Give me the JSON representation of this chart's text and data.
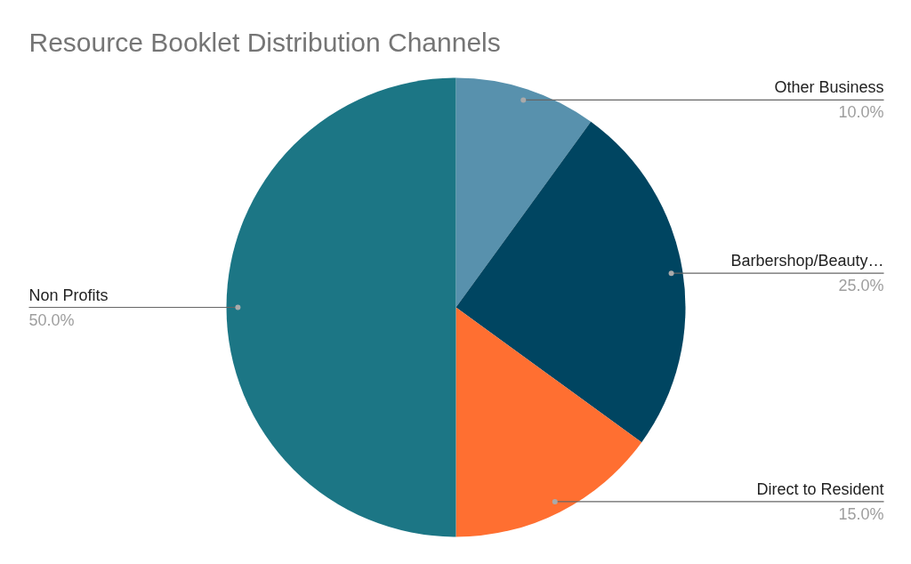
{
  "chart_data": {
    "type": "pie",
    "title": "Resource Booklet Distribution Channels",
    "categories": [
      "Other Business",
      "Barbershop/Beauty…",
      "Direct to Resident",
      "Non Profits"
    ],
    "values": [
      10,
      25,
      15,
      50
    ],
    "colors": [
      "#5891ad",
      "#004561",
      "#ff6f31",
      "#1c7685"
    ],
    "value_labels": [
      "10.0%",
      "25.0%",
      "15.0%",
      "50.0%"
    ]
  }
}
